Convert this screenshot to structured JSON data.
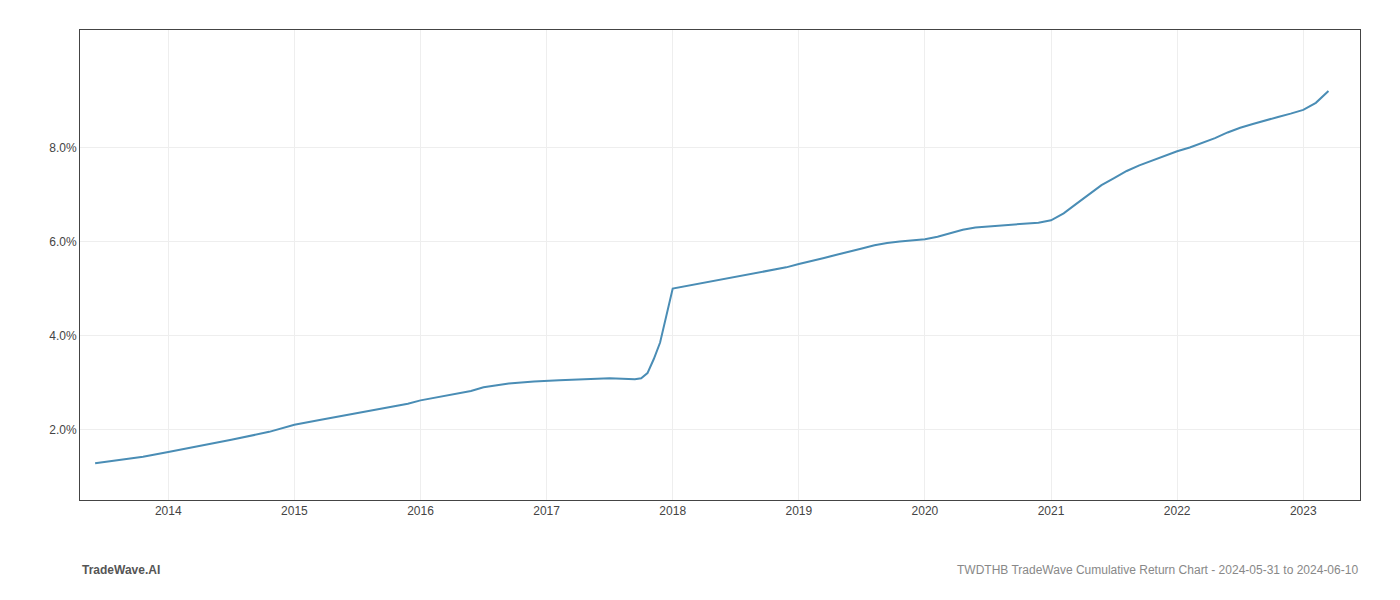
{
  "chart_data": {
    "type": "line",
    "x": [
      2013.42,
      2013.6,
      2013.8,
      2014.0,
      2014.2,
      2014.5,
      2014.8,
      2015.0,
      2015.2,
      2015.5,
      2015.7,
      2015.9,
      2016.0,
      2016.2,
      2016.4,
      2016.5,
      2016.7,
      2016.9,
      2017.0,
      2017.1,
      2017.2,
      2017.3,
      2017.4,
      2017.5,
      2017.6,
      2017.7,
      2017.75,
      2017.8,
      2017.85,
      2017.9,
      2018.0,
      2018.1,
      2018.2,
      2018.3,
      2018.5,
      2018.7,
      2018.9,
      2019.0,
      2019.1,
      2019.2,
      2019.3,
      2019.4,
      2019.5,
      2019.6,
      2019.7,
      2019.8,
      2019.9,
      2020.0,
      2020.1,
      2020.2,
      2020.3,
      2020.4,
      2020.5,
      2020.6,
      2020.7,
      2020.8,
      2020.9,
      2021.0,
      2021.1,
      2021.2,
      2021.3,
      2021.4,
      2021.5,
      2021.6,
      2021.7,
      2021.8,
      2021.9,
      2022.0,
      2022.1,
      2022.2,
      2022.3,
      2022.4,
      2022.5,
      2022.6,
      2022.7,
      2022.8,
      2022.9,
      2023.0,
      2023.1,
      2023.2
    ],
    "values": [
      1.28,
      1.35,
      1.42,
      1.52,
      1.62,
      1.78,
      1.95,
      2.1,
      2.2,
      2.35,
      2.45,
      2.55,
      2.62,
      2.72,
      2.82,
      2.9,
      2.98,
      3.02,
      3.04,
      3.05,
      3.06,
      3.07,
      3.08,
      3.09,
      3.08,
      3.07,
      3.09,
      3.2,
      3.5,
      3.85,
      5.0,
      5.05,
      5.1,
      5.15,
      5.25,
      5.35,
      5.45,
      5.52,
      5.58,
      5.65,
      5.72,
      5.78,
      5.85,
      5.92,
      5.97,
      6.0,
      6.02,
      6.05,
      6.1,
      6.18,
      6.25,
      6.3,
      6.32,
      6.33,
      6.35,
      6.38,
      6.4,
      6.45,
      6.6,
      6.8,
      7.0,
      7.2,
      7.35,
      7.5,
      7.62,
      7.72,
      7.82,
      7.92,
      8.0,
      8.1,
      8.2,
      8.32,
      8.42,
      8.5,
      8.58,
      8.65,
      8.72,
      8.8,
      8.95,
      9.2
    ],
    "color": "#4a8db5",
    "xlim": [
      2013.3,
      2023.45
    ],
    "xticks": [
      2014,
      2015,
      2016,
      2017,
      2018,
      2019,
      2020,
      2021,
      2022,
      2023
    ],
    "ylim": [
      0.5,
      10.5
    ],
    "yticks": [
      {
        "value": 2.0,
        "label": "2.0%"
      },
      {
        "value": 4.0,
        "label": "4.0%"
      },
      {
        "value": 6.0,
        "label": "6.0%"
      },
      {
        "value": 8.0,
        "label": "8.0%"
      }
    ],
    "grid": true,
    "annotations": [
      "TradeWave.AI",
      "TWDTHB TradeWave Cumulative Return Chart - 2024-05-31 to 2024-06-10"
    ]
  }
}
